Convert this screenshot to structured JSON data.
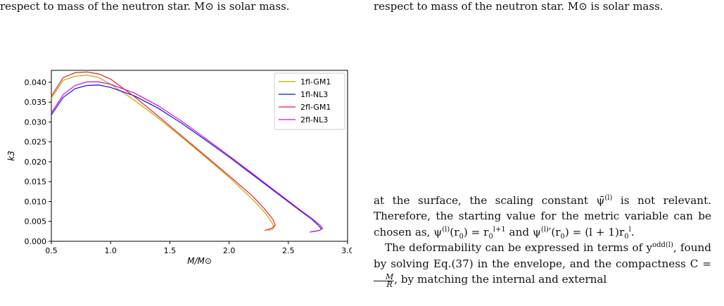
{
  "captions": {
    "left_top": "respect to mass of the neutron star. M⊙ is solar mass.",
    "right_top": "respect to mass of the neutron star. M⊙ is solar mass."
  },
  "chart_data": {
    "type": "line",
    "xlabel": "M/M⊙",
    "ylabel": "k3",
    "xlim": [
      0.5,
      3.0
    ],
    "ylim": [
      0.0,
      0.043
    ],
    "xticks": [
      "0.5",
      "1.0",
      "1.5",
      "2.0",
      "2.5",
      "3.0"
    ],
    "yticks": [
      "0.000",
      "0.005",
      "0.010",
      "0.015",
      "0.020",
      "0.025",
      "0.030",
      "0.035",
      "0.040"
    ],
    "legend_position": "top-right",
    "grid": false,
    "series": [
      {
        "name": "1fl-GM1",
        "color": "#c8a400",
        "x": [
          0.5,
          0.6,
          0.7,
          0.8,
          0.9,
          1.0,
          1.2,
          1.4,
          1.6,
          1.8,
          2.0,
          2.2,
          2.3,
          2.36,
          2.38,
          2.37,
          2.33
        ],
        "y": [
          0.036,
          0.0405,
          0.0415,
          0.0418,
          0.0412,
          0.0395,
          0.0355,
          0.031,
          0.0262,
          0.0212,
          0.0161,
          0.0105,
          0.0073,
          0.0048,
          0.0035,
          0.003,
          0.0027
        ]
      },
      {
        "name": "1fl-NL3",
        "color": "#1010e0",
        "x": [
          0.5,
          0.6,
          0.7,
          0.8,
          0.9,
          1.0,
          1.2,
          1.4,
          1.6,
          1.8,
          2.0,
          2.2,
          2.4,
          2.6,
          2.7,
          2.76,
          2.78,
          2.76,
          2.7
        ],
        "y": [
          0.0318,
          0.0362,
          0.0384,
          0.0392,
          0.0393,
          0.0387,
          0.0366,
          0.0335,
          0.0297,
          0.0255,
          0.0212,
          0.0167,
          0.0122,
          0.0077,
          0.0055,
          0.0038,
          0.0031,
          0.0027,
          0.0024
        ]
      },
      {
        "name": "2fl-GM1",
        "color": "#e0202a",
        "x": [
          0.5,
          0.6,
          0.7,
          0.8,
          0.9,
          1.0,
          1.2,
          1.4,
          1.6,
          1.8,
          2.0,
          2.2,
          2.3,
          2.37,
          2.39,
          2.36,
          2.3
        ],
        "y": [
          0.0365,
          0.0412,
          0.0424,
          0.0426,
          0.0421,
          0.0408,
          0.0364,
          0.0315,
          0.0265,
          0.0215,
          0.0165,
          0.0113,
          0.0081,
          0.0055,
          0.004,
          0.0033,
          0.0027
        ]
      },
      {
        "name": "2fl-NL3",
        "color": "#d010d0",
        "x": [
          0.5,
          0.6,
          0.7,
          0.8,
          0.9,
          1.0,
          1.2,
          1.4,
          1.6,
          1.8,
          2.0,
          2.2,
          2.4,
          2.6,
          2.7,
          2.77,
          2.79,
          2.76,
          2.68
        ],
        "y": [
          0.0323,
          0.0369,
          0.0392,
          0.0401,
          0.0401,
          0.0395,
          0.0373,
          0.0341,
          0.0302,
          0.0259,
          0.0215,
          0.017,
          0.0124,
          0.0079,
          0.0057,
          0.004,
          0.0032,
          0.0027,
          0.0023
        ]
      }
    ]
  },
  "body_text": {
    "p1_line1": "at the surface, the scaling constant ψ̄",
    "p1_sup1": "(l)",
    "p1_line1_end": " is not relevant.",
    "p1_line2": "Therefore, the starting value for the metric variable can be chosen as, ψ",
    "p1_sup2": "(l)",
    "p1_mid1": "(r",
    "p1_sub1": "0",
    "p1_mid2": ") = r",
    "p1_sub2": "0",
    "p1_sup3": "l+1",
    "p1_mid3": " and ψ",
    "p1_sup4": "(l)",
    "p1_mid4": "′(r",
    "p1_sub3": "0",
    "p1_mid5": ") = (l + 1)r",
    "p1_sub4": "0",
    "p1_sup5": "l",
    "p1_end": ".",
    "p2_start": "The deformability can be expressed in terms of y",
    "p2_sup1": "odd(l)",
    "p2_mid1": ", found by solving Eq.(37) in the envelope, and the compactness C = ",
    "p2_frac_num": "M",
    "p2_frac_den": "R",
    "p2_end": ", by matching the internal and external"
  }
}
